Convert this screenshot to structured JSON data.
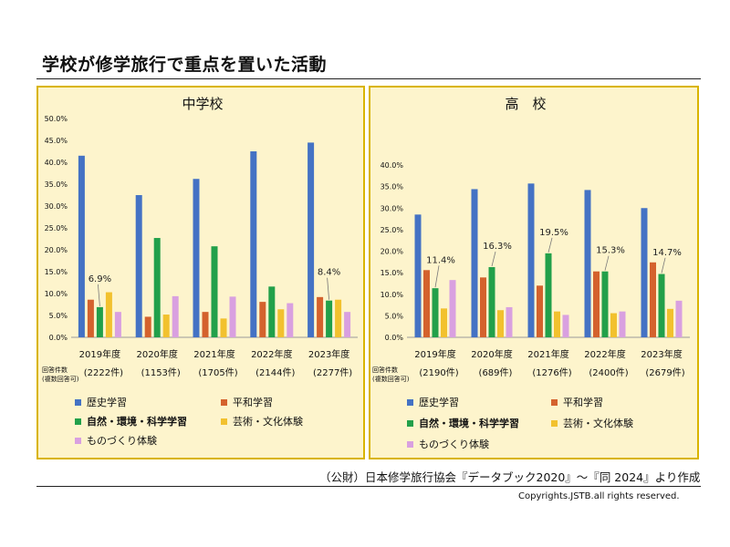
{
  "page": {
    "title": "学校が修学旅行で重点を置いた活動",
    "source": "（公財）日本修学旅行協会『データブック2020』〜『同 2024』より作成",
    "copyright": "Copyrights.JSTB.all rights reserved."
  },
  "colors": {
    "panel_bg": "#fdf4cc",
    "panel_border": "#d9b400",
    "series": [
      "#4472c4",
      "#d4622d",
      "#22a04a",
      "#f2c12e",
      "#d9a0e0"
    ]
  },
  "legend": {
    "items": [
      "歴史学習",
      "平和学習",
      "自然・環境・科学学習",
      "芸術・文化体験",
      "ものづくり体験"
    ]
  },
  "counts_header": {
    "line1": "回答件数",
    "line2": "(複数回答可)"
  },
  "chart_data": [
    {
      "type": "bar",
      "title": "中学校",
      "categories": [
        "2019年度",
        "2020年度",
        "2021年度",
        "2022年度",
        "2023年度"
      ],
      "responses": [
        "(2222件)",
        "(1153件)",
        "(1705件)",
        "(2144件)",
        "(2277件)"
      ],
      "ylim": [
        0,
        50
      ],
      "y_ticks": [
        "0.0%",
        "5.0%",
        "10.0%",
        "15.0%",
        "20.0%",
        "25.0%",
        "30.0%",
        "35.0%",
        "40.0%",
        "45.0%",
        "50.0%"
      ],
      "grid": false,
      "series": [
        {
          "name": "歴史学習",
          "values": [
            41.5,
            32.5,
            36.2,
            42.5,
            44.5
          ]
        },
        {
          "name": "平和学習",
          "values": [
            8.6,
            4.7,
            5.8,
            8.1,
            9.2
          ]
        },
        {
          "name": "自然・環境・科学学習",
          "values": [
            6.9,
            22.7,
            20.8,
            11.6,
            8.4
          ]
        },
        {
          "name": "芸術・文化体験",
          "values": [
            10.3,
            5.2,
            4.3,
            6.4,
            8.6
          ]
        },
        {
          "name": "ものづくり体験",
          "values": [
            5.8,
            9.4,
            9.3,
            7.8,
            5.8
          ]
        }
      ],
      "annotations": [
        {
          "category": 0,
          "series": 2,
          "text": "6.9%"
        },
        {
          "category": 4,
          "series": 2,
          "text": "8.4%"
        }
      ]
    },
    {
      "type": "bar",
      "title": "高　校",
      "categories": [
        "2019年度",
        "2020年度",
        "2021年度",
        "2022年度",
        "2023年度"
      ],
      "responses": [
        "(2190件)",
        "(689件)",
        "(1276件)",
        "(2400件)",
        "(2679件)"
      ],
      "ylim": [
        0,
        40
      ],
      "y_ticks": [
        "0.0%",
        "5.0%",
        "10.0%",
        "15.0%",
        "20.0%",
        "25.0%",
        "30.0%",
        "35.0%",
        "40.0%"
      ],
      "grid": false,
      "series": [
        {
          "name": "歴史学習",
          "values": [
            28.5,
            34.4,
            35.7,
            34.2,
            30.0
          ]
        },
        {
          "name": "平和学習",
          "values": [
            15.6,
            13.9,
            12.0,
            15.3,
            17.4
          ]
        },
        {
          "name": "自然・環境・科学学習",
          "values": [
            11.4,
            16.3,
            19.5,
            15.3,
            14.7
          ]
        },
        {
          "name": "芸術・文化体験",
          "values": [
            6.7,
            6.3,
            6.0,
            5.6,
            6.6
          ]
        },
        {
          "name": "ものづくり体験",
          "values": [
            13.3,
            7.0,
            5.2,
            6.0,
            8.5
          ]
        }
      ],
      "annotations": [
        {
          "category": 0,
          "series": 2,
          "text": "11.4%"
        },
        {
          "category": 1,
          "series": 2,
          "text": "16.3%"
        },
        {
          "category": 2,
          "series": 2,
          "text": "19.5%"
        },
        {
          "category": 3,
          "series": 2,
          "text": "15.3%"
        },
        {
          "category": 4,
          "series": 2,
          "text": "14.7%"
        }
      ]
    }
  ]
}
